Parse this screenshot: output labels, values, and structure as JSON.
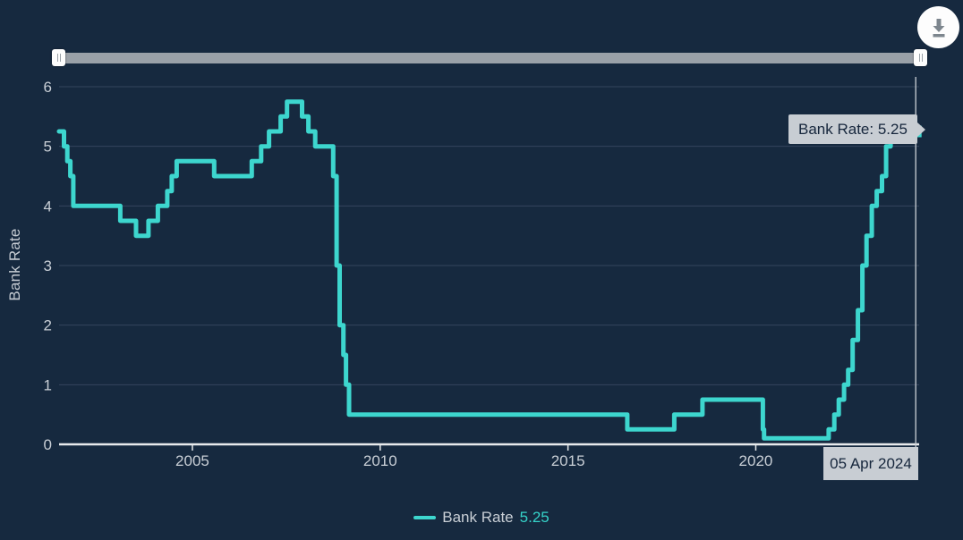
{
  "colors": {
    "background": "#16293F",
    "line": "#3DD6CE",
    "grid": "#34455E",
    "axis_line": "#E8EAEC",
    "axis_text": "#C9CFD6",
    "crosshair": "#C5CBD1",
    "tooltip_bg": "#C8CDD3",
    "tooltip_text": "#16263C"
  },
  "icons": {
    "download": "download-arrow"
  },
  "tooltip": {
    "text": "Bank Rate: 5.25"
  },
  "date_label": {
    "text": "05 Apr 2024"
  },
  "legend": {
    "label": "Bank Rate",
    "value": "5.25"
  },
  "chart_data": {
    "type": "line",
    "title": "",
    "xlabel": "",
    "ylabel": "Bank Rate",
    "series": [
      {
        "name": "Bank Rate",
        "color": "#3DD6CE",
        "step": true,
        "points": [
          [
            2001.45,
            5.25
          ],
          [
            2001.58,
            5.0
          ],
          [
            2001.67,
            4.75
          ],
          [
            2001.75,
            4.5
          ],
          [
            2001.83,
            4.0
          ],
          [
            2003.08,
            3.75
          ],
          [
            2003.5,
            3.5
          ],
          [
            2003.83,
            3.75
          ],
          [
            2004.08,
            4.0
          ],
          [
            2004.33,
            4.25
          ],
          [
            2004.45,
            4.5
          ],
          [
            2004.58,
            4.75
          ],
          [
            2005.58,
            4.5
          ],
          [
            2006.58,
            4.75
          ],
          [
            2006.83,
            5.0
          ],
          [
            2007.04,
            5.25
          ],
          [
            2007.35,
            5.5
          ],
          [
            2007.52,
            5.75
          ],
          [
            2007.92,
            5.5
          ],
          [
            2008.09,
            5.25
          ],
          [
            2008.27,
            5.0
          ],
          [
            2008.75,
            4.5
          ],
          [
            2008.84,
            3.0
          ],
          [
            2008.92,
            2.0
          ],
          [
            2009.02,
            1.5
          ],
          [
            2009.09,
            1.0
          ],
          [
            2009.17,
            0.5
          ],
          [
            2016.58,
            0.25
          ],
          [
            2017.83,
            0.5
          ],
          [
            2018.58,
            0.75
          ],
          [
            2020.19,
            0.25
          ],
          [
            2020.22,
            0.1
          ],
          [
            2021.94,
            0.25
          ],
          [
            2022.09,
            0.5
          ],
          [
            2022.21,
            0.75
          ],
          [
            2022.35,
            1.0
          ],
          [
            2022.46,
            1.25
          ],
          [
            2022.58,
            1.75
          ],
          [
            2022.72,
            2.25
          ],
          [
            2022.84,
            3.0
          ],
          [
            2022.95,
            3.5
          ],
          [
            2023.09,
            4.0
          ],
          [
            2023.22,
            4.25
          ],
          [
            2023.36,
            4.5
          ],
          [
            2023.47,
            5.0
          ],
          [
            2023.59,
            5.25
          ],
          [
            2024.26,
            5.25
          ]
        ]
      }
    ],
    "x_ticks": [
      2005,
      2010,
      2015,
      2020
    ],
    "y_ticks": [
      0,
      1,
      2,
      3,
      4,
      5,
      6
    ],
    "xlim": [
      2001.45,
      2024.35
    ],
    "ylim": [
      0,
      6
    ],
    "grid": true,
    "legend_position": "bottom",
    "last_point": {
      "date": "05 Apr 2024",
      "value": 5.25
    }
  }
}
